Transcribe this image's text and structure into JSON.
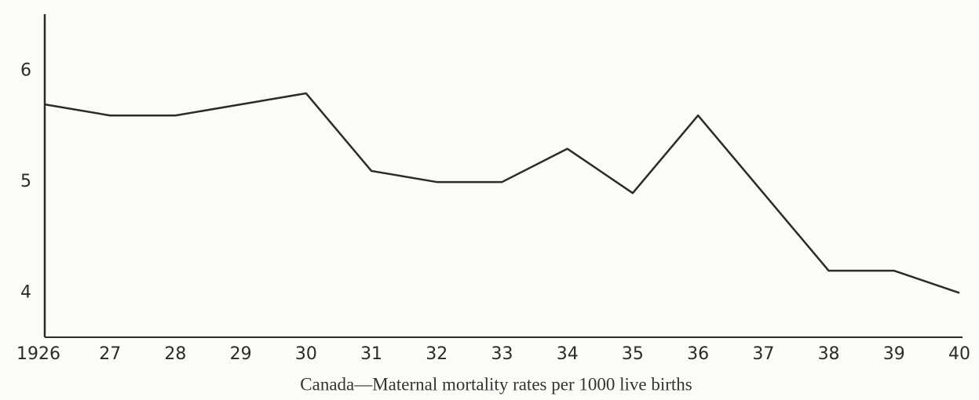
{
  "chart_data": {
    "type": "line",
    "title": "Canada—Maternal mortality rates per 1000 live births",
    "categories": [
      "1926",
      "27",
      "28",
      "29",
      "30",
      "31",
      "32",
      "33",
      "34",
      "35",
      "36",
      "37",
      "38",
      "39",
      "40"
    ],
    "series": [
      {
        "name": "Maternal mortality rate",
        "color": "#2b2b2b",
        "values": [
          5.7,
          5.6,
          5.6,
          5.7,
          5.8,
          5.1,
          5.0,
          5.0,
          5.3,
          4.9,
          5.6,
          4.9,
          4.2,
          4.2,
          4.0
        ]
      }
    ],
    "ylim": [
      3.6,
      6.5
    ],
    "yticks": [
      4,
      5,
      6
    ],
    "grid": false
  }
}
